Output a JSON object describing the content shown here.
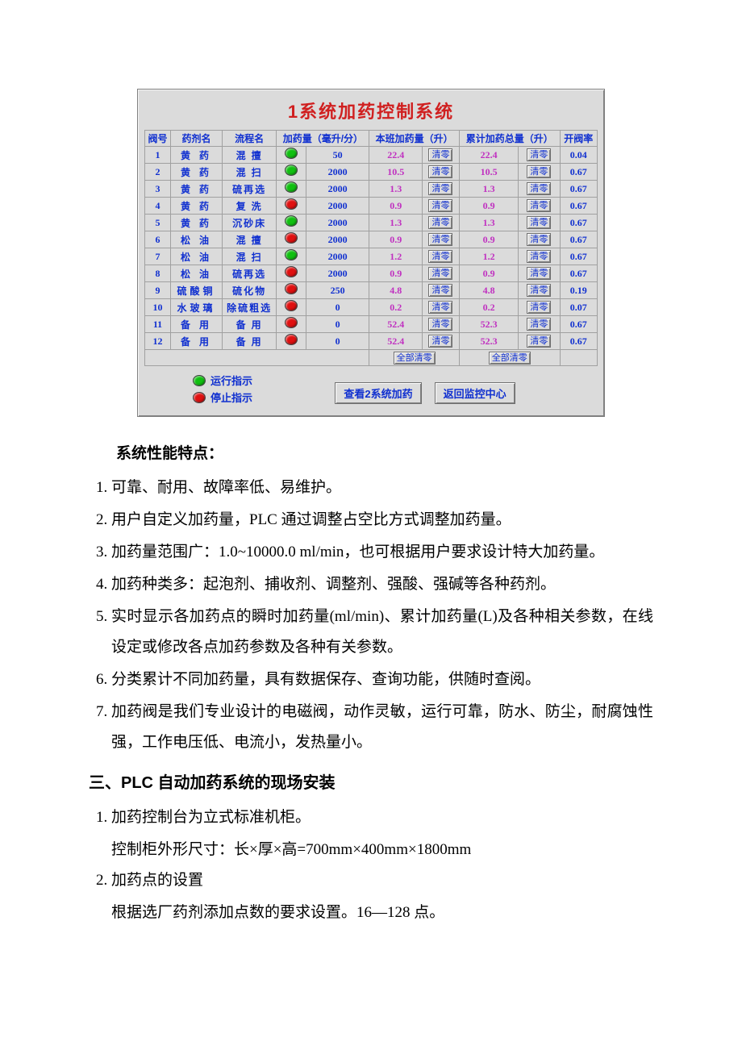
{
  "panel": {
    "title": "1系统加药控制系统",
    "title_color": "#d02020",
    "bg_color": "#dbdbdb",
    "header_color": "#1030d0",
    "value_blue": "#1030d0",
    "value_magenta": "#c030c0",
    "led_green": "#10c010",
    "led_red": "#e01010",
    "columns": {
      "valve": "阀号",
      "drug": "药剂名",
      "process": "流程名",
      "dose": "加药量（毫升/分）",
      "shift": "本班加药量（升）",
      "total": "累计加药总量（升）",
      "rate": "开阀率"
    },
    "clear_btn_label": "清零",
    "clear_all_label": "全部清零",
    "rows": [
      {
        "valve": "1",
        "drug": "黄  药",
        "proc": "混  擅",
        "led": "green",
        "dose": "50",
        "shift": "22.4",
        "total": "22.4",
        "rate": "0.04"
      },
      {
        "valve": "2",
        "drug": "黄  药",
        "proc": "混  扫",
        "led": "green",
        "dose": "2000",
        "shift": "10.5",
        "total": "10.5",
        "rate": "0.67"
      },
      {
        "valve": "3",
        "drug": "黄  药",
        "proc": "硫再选",
        "led": "green",
        "dose": "2000",
        "shift": "1.3",
        "total": "1.3",
        "rate": "0.67"
      },
      {
        "valve": "4",
        "drug": "黄  药",
        "proc": "复  洗",
        "led": "red",
        "dose": "2000",
        "shift": "0.9",
        "total": "0.9",
        "rate": "0.67"
      },
      {
        "valve": "5",
        "drug": "黄  药",
        "proc": "沉砂床",
        "led": "green",
        "dose": "2000",
        "shift": "1.3",
        "total": "1.3",
        "rate": "0.67"
      },
      {
        "valve": "6",
        "drug": "松  油",
        "proc": "混  擅",
        "led": "red",
        "dose": "2000",
        "shift": "0.9",
        "total": "0.9",
        "rate": "0.67"
      },
      {
        "valve": "7",
        "drug": "松  油",
        "proc": "混  扫",
        "led": "green",
        "dose": "2000",
        "shift": "1.2",
        "total": "1.2",
        "rate": "0.67"
      },
      {
        "valve": "8",
        "drug": "松  油",
        "proc": "硫再选",
        "led": "red",
        "dose": "2000",
        "shift": "0.9",
        "total": "0.9",
        "rate": "0.67"
      },
      {
        "valve": "9",
        "drug": "硫酸铜",
        "proc": "硫化物",
        "led": "red",
        "dose": "250",
        "shift": "4.8",
        "total": "4.8",
        "rate": "0.19"
      },
      {
        "valve": "10",
        "drug": "水玻璃",
        "proc": "除硫粗选",
        "led": "red",
        "dose": "0",
        "shift": "0.2",
        "total": "0.2",
        "rate": "0.07"
      },
      {
        "valve": "11",
        "drug": "备  用",
        "proc": "备  用",
        "led": "red",
        "dose": "0",
        "shift": "52.4",
        "total": "52.3",
        "rate": "0.67"
      },
      {
        "valve": "12",
        "drug": "备  用",
        "proc": "备  用",
        "led": "red",
        "dose": "0",
        "shift": "52.4",
        "total": "52.3",
        "rate": "0.67"
      }
    ],
    "legend": {
      "run": "运行指示",
      "stop": "停止指示"
    },
    "buttons": {
      "view_sys2": "查看2系统加药",
      "back": "返回监控中心"
    }
  },
  "doc": {
    "features_heading": "系统性能特点：",
    "features": [
      "可靠、耐用、故障率低、易维护。",
      "用户自定义加药量，PLC 通过调整占空比方式调整加药量。",
      "加药量范围广：1.0~10000.0 ml/min，也可根据用户要求设计特大加药量。",
      "加药种类多：起泡剂、捕收剂、调整剂、强酸、强碱等各种药剂。",
      "实时显示各加药点的瞬时加药量(ml/min)、累计加药量(L)及各种相关参数，在线设定或修改各点加药参数及各种有关参数。",
      "分类累计不同加药量，具有数据保存、查询功能，供随时查阅。",
      "加药阀是我们专业设计的电磁阀，动作灵敏，运行可靠，防水、防尘，耐腐蚀性强，工作电压低、电流小，发热量小。"
    ],
    "section3_title": "三、PLC 自动加药系统的现场安装",
    "install_1": "加药控制台为立式标准机柜。",
    "install_1_sub": "控制柜外形尺寸：长×厚×高=700mm×400mm×1800mm",
    "install_2": "加药点的设置",
    "install_2_sub": "根据选厂药剂添加点数的要求设置。16—128 点。"
  }
}
